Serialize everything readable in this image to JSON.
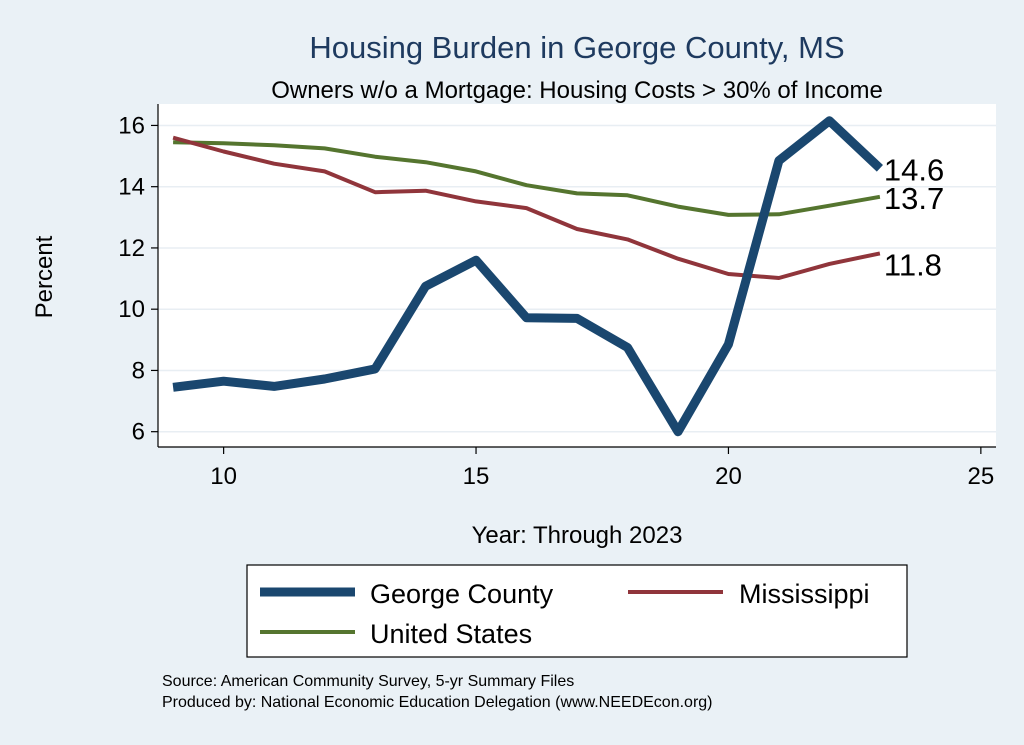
{
  "chart_data": {
    "type": "line",
    "title": "Housing Burden in George County, MS",
    "subtitle": "Owners w/o a Mortgage: Housing Costs > 30% of Income",
    "xlabel": "Year: Through 2023",
    "ylabel": "Percent",
    "xlim": [
      8.7,
      25.3
    ],
    "ylim": [
      5.5,
      16.7
    ],
    "xticks": [
      10,
      15,
      20,
      25
    ],
    "yticks": [
      6,
      8,
      10,
      12,
      14,
      16
    ],
    "grid": true,
    "legend_position": "bottom",
    "series": [
      {
        "name": "George County",
        "color": "#1a476f",
        "x": [
          9,
          10,
          11,
          12,
          13,
          14,
          15,
          16,
          17,
          18,
          19,
          20,
          21,
          22,
          23
        ],
        "values": [
          7.45,
          7.65,
          7.48,
          7.72,
          8.05,
          10.75,
          11.6,
          9.72,
          9.7,
          8.75,
          6.0,
          8.85,
          14.85,
          16.15,
          14.6
        ],
        "end_label": "14.6"
      },
      {
        "name": "Mississippi",
        "color": "#90353b",
        "x": [
          9,
          10,
          11,
          12,
          13,
          14,
          15,
          16,
          17,
          18,
          19,
          20,
          21,
          22,
          23
        ],
        "values": [
          15.6,
          15.15,
          14.75,
          14.5,
          13.82,
          13.87,
          13.52,
          13.3,
          12.62,
          12.28,
          11.65,
          11.15,
          11.02,
          11.48,
          11.82
        ],
        "end_label": "11.8"
      },
      {
        "name": "United States",
        "color": "#55752f",
        "x": [
          9,
          10,
          11,
          12,
          13,
          14,
          15,
          16,
          17,
          18,
          19,
          20,
          21,
          22,
          23
        ],
        "values": [
          15.45,
          15.42,
          15.35,
          15.25,
          14.98,
          14.8,
          14.5,
          14.05,
          13.78,
          13.72,
          13.35,
          13.08,
          13.1,
          13.38,
          13.67
        ],
        "end_label": "13.7"
      }
    ],
    "source_lines": [
      "Source: American Community Survey, 5-yr Summary Files",
      "Produced by: National Economic Education Delegation (www.NEEDEcon.org)"
    ]
  }
}
